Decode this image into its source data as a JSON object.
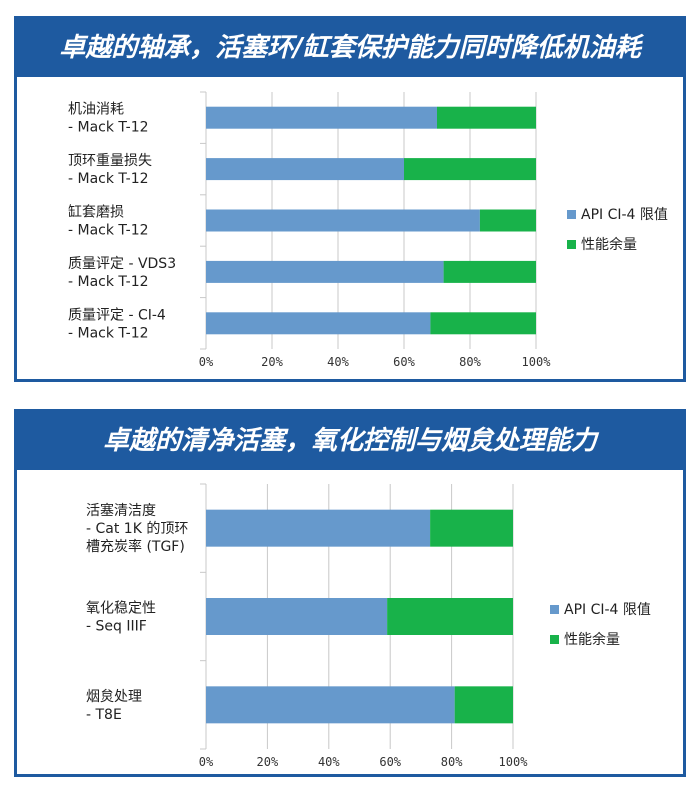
{
  "colors": {
    "banner": "#1e5aa0",
    "api_limit": "#6699cc",
    "margin": "#18b24a",
    "axis": "#c8c8c8"
  },
  "chart_data": [
    {
      "type": "bar",
      "orientation": "horizontal",
      "stacked": true,
      "title": "卓越的轴承，活塞环/缸套保护能力同时降低机油耗",
      "categories": [
        [
          "机油消耗",
          "- Mack T-12"
        ],
        [
          "顶环重量损失",
          "- Mack T-12"
        ],
        [
          "缸套磨损",
          "- Mack T-12"
        ],
        [
          "质量评定 - VDS3",
          "- Mack T-12"
        ],
        [
          "质量评定 - CI-4",
          "- Mack T-12"
        ]
      ],
      "series": [
        {
          "name": "API CI-4 限值",
          "values": [
            70,
            60,
            83,
            72,
            68
          ]
        },
        {
          "name": "性能余量",
          "values": [
            30,
            40,
            17,
            28,
            32
          ]
        }
      ],
      "xlim": [
        0,
        100
      ],
      "xticks": [
        "0%",
        "20%",
        "40%",
        "60%",
        "80%",
        "100%"
      ],
      "legend": "right"
    },
    {
      "type": "bar",
      "orientation": "horizontal",
      "stacked": true,
      "title": "卓越的清净活塞，氧化控制与烟炱处理能力",
      "categories": [
        [
          "活塞清洁度",
          "- Cat 1K 的顶环",
          "槽充炭率 (TGF)"
        ],
        [
          "氧化稳定性",
          "- Seq IIIF"
        ],
        [
          "烟炱处理",
          "- T8E"
        ]
      ],
      "series": [
        {
          "name": "API CI-4 限值",
          "values": [
            73,
            59,
            81
          ]
        },
        {
          "name": "性能余量",
          "values": [
            27,
            41,
            19
          ]
        }
      ],
      "xlim": [
        0,
        100
      ],
      "xticks": [
        "0%",
        "20%",
        "40%",
        "60%",
        "80%",
        "100%"
      ],
      "legend": "right"
    }
  ]
}
